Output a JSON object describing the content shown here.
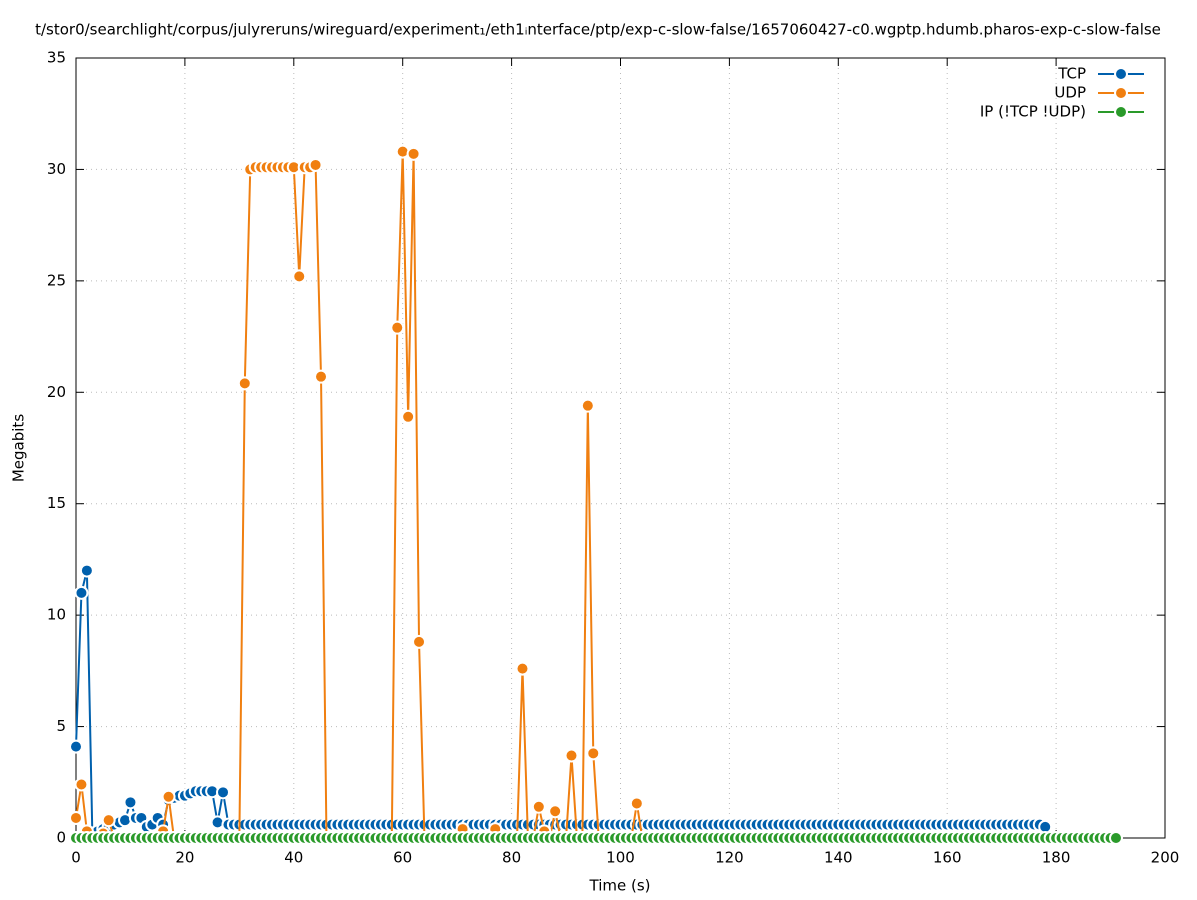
{
  "chart_data": {
    "type": "line",
    "title": "t/stor0/searchlight/corpus/julyreruns/wireguard/experiment₁/eth1ᵢnterface/ptp/exp-c-slow-false/1657060427-c0.wgptp.hdumb.pharos-exp-c-slow-false",
    "x_label": "Time (s)",
    "y_label": "Megabits",
    "x": [
      0,
      1,
      2,
      3,
      4,
      5,
      6,
      7,
      8,
      9,
      10,
      11,
      12,
      13,
      14,
      15,
      16,
      17,
      18,
      19,
      20,
      21,
      22,
      23,
      24,
      25,
      26,
      27,
      28,
      29,
      30,
      31,
      32,
      33,
      34,
      35,
      36,
      37,
      38,
      39,
      40,
      41,
      42,
      43,
      44,
      45,
      46,
      47,
      48,
      49,
      50,
      51,
      52,
      53,
      54,
      55,
      56,
      57,
      58,
      59,
      60,
      61,
      62,
      63,
      64,
      65,
      66,
      67,
      68,
      69,
      70,
      71,
      72,
      73,
      74,
      75,
      76,
      77,
      78,
      79,
      80,
      81,
      82,
      83,
      84,
      85,
      86,
      87,
      88,
      89,
      90,
      91,
      92,
      93,
      94,
      95,
      96,
      97,
      98,
      99,
      100,
      101,
      102,
      103,
      104,
      105,
      106,
      107,
      108,
      109,
      110,
      111,
      112,
      113,
      114,
      115,
      116,
      117,
      118,
      119,
      120,
      121,
      122,
      123,
      124,
      125,
      126,
      127,
      128,
      129,
      130,
      131,
      132,
      133,
      134,
      135,
      136,
      137,
      138,
      139,
      140,
      141,
      142,
      143,
      144,
      145,
      146,
      147,
      148,
      149,
      150,
      151,
      152,
      153,
      154,
      155,
      156,
      157,
      158,
      159,
      160,
      161,
      162,
      163,
      164,
      165,
      166,
      167,
      168,
      169,
      170,
      171,
      172,
      173,
      174,
      175,
      176,
      177,
      178,
      179,
      180,
      181,
      182,
      183,
      184,
      185,
      186,
      187,
      188,
      189,
      190,
      191
    ],
    "series": [
      {
        "name": "TCP",
        "color": "#0060ad",
        "values": [
          4.1,
          11,
          12,
          0.2,
          0.3,
          0.4,
          0.5,
          0.6,
          0.7,
          0.8,
          1.6,
          0.9,
          0.9,
          0.5,
          0.6,
          0.9,
          0.6,
          1.7,
          1.8,
          1.9,
          1.9,
          2,
          2.1,
          2.1,
          2.1,
          2.1,
          0.7,
          2.05,
          0.6,
          0.6,
          0.6,
          0.6,
          0.6,
          0.6,
          0.6,
          0.6,
          0.6,
          0.6,
          0.6,
          0.6,
          0.6,
          0.6,
          0.6,
          0.6,
          0.6,
          0.6,
          0.6,
          0.6,
          0.6,
          0.6,
          0.6,
          0.6,
          0.6,
          0.6,
          0.6,
          0.6,
          0.6,
          0.6,
          0.6,
          0.6,
          0.6,
          0.6,
          0.6,
          0.6,
          0.6,
          0.6,
          0.6,
          0.6,
          0.6,
          0.6,
          0.6,
          0.6,
          0.6,
          0.6,
          0.6,
          0.6,
          0.6,
          0.6,
          0.6,
          0.6,
          0.6,
          0.6,
          0.6,
          0.6,
          0.6,
          0.6,
          0.6,
          0.6,
          0.6,
          0.6,
          0.6,
          0.6,
          0.6,
          0.6,
          0.6,
          0.6,
          0.6,
          0.6,
          0.6,
          0.6,
          0.6,
          0.6,
          0.6,
          0.6,
          0.6,
          0.6,
          0.6,
          0.6,
          0.6,
          0.6,
          0.6,
          0.6,
          0.6,
          0.6,
          0.6,
          0.6,
          0.6,
          0.6,
          0.6,
          0.6,
          0.6,
          0.6,
          0.6,
          0.6,
          0.6,
          0.6,
          0.6,
          0.6,
          0.6,
          0.6,
          0.6,
          0.6,
          0.6,
          0.6,
          0.6,
          0.6,
          0.6,
          0.6,
          0.6,
          0.6,
          0.6,
          0.6,
          0.6,
          0.6,
          0.6,
          0.6,
          0.6,
          0.6,
          0.6,
          0.6,
          0.6,
          0.6,
          0.6,
          0.6,
          0.6,
          0.6,
          0.6,
          0.6,
          0.6,
          0.6,
          0.6,
          0.6,
          0.6,
          0.6,
          0.6,
          0.6,
          0.6,
          0.6,
          0.6,
          0.6,
          0.6,
          0.6,
          0.6,
          0.6,
          0.6,
          0.6,
          0.6,
          0.6,
          0.5,
          null,
          null,
          null,
          null,
          null,
          null,
          null,
          null,
          null,
          null,
          null,
          null,
          null
        ]
      },
      {
        "name": "UDP",
        "color": "#f07f10",
        "values": [
          0.9,
          2.4,
          0.3,
          0,
          0,
          0.2,
          0.8,
          0,
          0,
          0,
          0,
          0,
          0,
          0,
          0,
          0,
          0.3,
          1.85,
          0,
          0,
          0,
          0,
          0,
          0,
          0,
          0,
          0,
          0,
          0,
          0,
          0,
          20.4,
          30,
          30.1,
          30.1,
          30.1,
          30.1,
          30.1,
          30.1,
          30.1,
          30.1,
          25.2,
          30.1,
          30.1,
          30.2,
          20.7,
          0,
          0,
          0,
          0,
          0,
          0,
          0,
          0,
          0,
          0,
          0,
          0,
          0,
          22.9,
          30.8,
          18.9,
          30.7,
          8.8,
          0,
          0,
          0,
          0,
          0,
          0,
          0,
          0.4,
          0,
          0,
          0,
          0,
          0,
          0.4,
          0,
          0,
          0,
          0,
          7.6,
          0,
          0,
          1.4,
          0.3,
          0,
          1.2,
          0,
          0,
          3.7,
          0,
          0,
          19.4,
          3.8,
          0,
          0,
          0,
          0,
          0,
          0,
          0,
          1.55,
          0,
          0,
          0,
          0,
          0,
          0,
          0,
          null,
          null,
          null,
          null,
          null,
          null,
          null,
          null,
          null,
          null,
          null,
          null,
          null,
          null,
          null,
          null,
          null,
          null,
          null,
          null,
          null,
          null,
          null,
          null,
          null,
          null,
          null,
          null,
          null,
          null,
          null,
          null,
          null,
          null,
          null,
          null,
          null,
          null,
          null,
          null,
          null,
          null,
          null,
          null,
          null,
          null,
          null,
          null,
          null,
          null,
          null,
          null,
          null,
          null,
          null,
          null,
          null,
          null,
          null,
          null,
          null,
          null,
          null,
          null,
          null,
          null,
          null,
          null,
          null,
          null,
          null,
          null,
          null,
          null,
          null,
          null,
          null,
          null,
          null,
          null,
          null
        ]
      },
      {
        "name": "IP (!TCP  !UDP)",
        "color": "#2a9a2a",
        "values": [
          0,
          0,
          0,
          0,
          0,
          0,
          0,
          0,
          0,
          0,
          0,
          0,
          0,
          0,
          0,
          0,
          0,
          0,
          0,
          0,
          0,
          0,
          0,
          0,
          0,
          0,
          0,
          0,
          0,
          0,
          0,
          0,
          0,
          0,
          0,
          0,
          0,
          0,
          0,
          0,
          0,
          0,
          0,
          0,
          0,
          0,
          0,
          0,
          0,
          0,
          0,
          0,
          0,
          0,
          0,
          0,
          0,
          0,
          0,
          0,
          0,
          0,
          0,
          0,
          0,
          0,
          0,
          0,
          0,
          0,
          0,
          0,
          0,
          0,
          0,
          0,
          0,
          0,
          0,
          0,
          0,
          0,
          0,
          0,
          0,
          0,
          0,
          0,
          0,
          0,
          0,
          0,
          0,
          0,
          0,
          0,
          0,
          0,
          0,
          0,
          0,
          0,
          0,
          0,
          0,
          0,
          0,
          0,
          0,
          0,
          0,
          0,
          0,
          0,
          0,
          0,
          0,
          0,
          0,
          0,
          0,
          0,
          0,
          0,
          0,
          0,
          0,
          0,
          0,
          0,
          0,
          0,
          0,
          0,
          0,
          0,
          0,
          0,
          0,
          0,
          0,
          0,
          0,
          0,
          0,
          0,
          0,
          0,
          0,
          0,
          0,
          0,
          0,
          0,
          0,
          0,
          0,
          0,
          0,
          0,
          0,
          0,
          0,
          0,
          0,
          0,
          0,
          0,
          0,
          0,
          0,
          0,
          0,
          0,
          0,
          0,
          0,
          0,
          0,
          0,
          0,
          0,
          0,
          0,
          0,
          0,
          0,
          0,
          0,
          0,
          0,
          0
        ]
      }
    ],
    "xlim": [
      0,
      200
    ],
    "xticks": [
      0,
      20,
      40,
      60,
      80,
      100,
      120,
      140,
      160,
      180,
      200
    ],
    "ylim": [
      0,
      35
    ],
    "yticks": [
      0,
      5,
      10,
      15,
      20,
      25,
      30,
      35
    ],
    "grid": true,
    "legend": "top-right"
  }
}
